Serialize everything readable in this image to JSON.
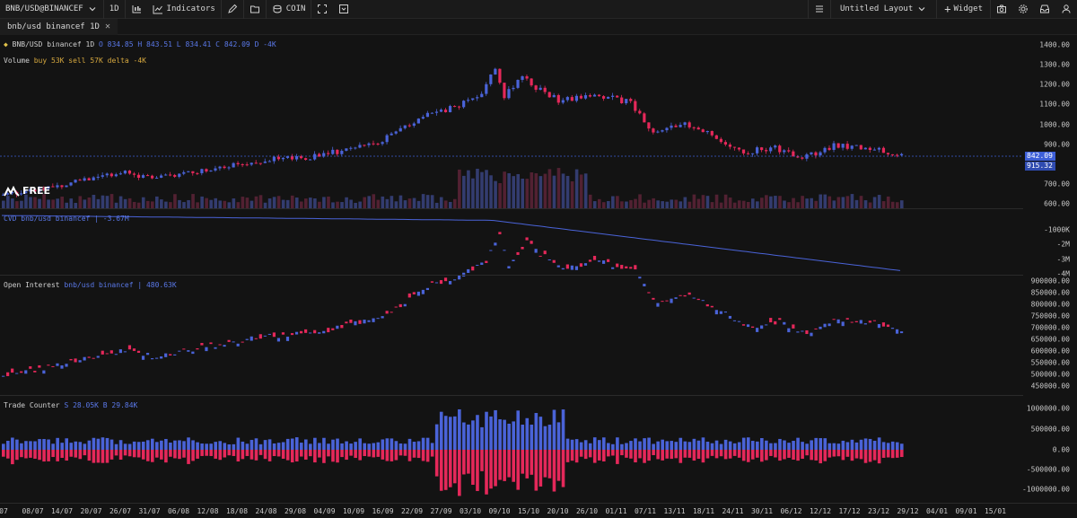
{
  "topbar": {
    "symbol": "BNB/USD@BINANCEF",
    "timeframe": "1D",
    "indicators_label": "Indicators",
    "coin_label": "COIN",
    "layout_name": "Untitled Layout",
    "widget_label": "Widget"
  },
  "tab": {
    "label": "bnb/usd binancef 1D"
  },
  "price_pane": {
    "title": "BNB/USD binancef 1D",
    "ohlc": {
      "o_label": "O",
      "o": "834.85",
      "h_label": "H",
      "h": "843.51",
      "l_label": "L",
      "l": "834.41",
      "c_label": "C",
      "c": "842.09",
      "d_label": "D",
      "d": "-4K"
    },
    "volume_legend": {
      "label": "Volume",
      "buy": "buy 53K",
      "sell": "sell 57K",
      "delta": "delta -4K"
    },
    "axis_labels": [
      "1400.00",
      "1300.00",
      "1200.00",
      "1100.00",
      "1000.00",
      "900.00",
      "842.09",
      "915.32",
      "700.00",
      "600.00"
    ],
    "last_price_tag": "842.09",
    "second_tag": "915.32"
  },
  "cvd_pane": {
    "legend": "CVD bnb/usd binancef | -3.67M",
    "axis_labels": [
      "-1000K",
      "-2M",
      "-3M",
      "-4M"
    ]
  },
  "oi_pane": {
    "legend_label": "Open Interest",
    "legend_value": "bnb/usd binancef | 480.63K",
    "axis_labels": [
      "900000.00",
      "850000.00",
      "800000.00",
      "750000.00",
      "700000.00",
      "650000.00",
      "600000.00",
      "550000.00",
      "500000.00",
      "450000.00"
    ]
  },
  "trade_pane": {
    "legend_label": "Trade Counter",
    "legend_value": "S 28.05K B 29.84K",
    "axis_labels": [
      "1000000.00",
      "500000.00",
      "0.00",
      "-500000.00",
      "-1000000.00"
    ]
  },
  "time_axis": [
    "07",
    "08/07",
    "14/07",
    "20/07",
    "26/07",
    "31/07",
    "06/08",
    "12/08",
    "18/08",
    "24/08",
    "29/08",
    "04/09",
    "10/09",
    "16/09",
    "22/09",
    "27/09",
    "03/10",
    "09/10",
    "15/10",
    "20/10",
    "26/10",
    "01/11",
    "07/11",
    "13/11",
    "18/11",
    "24/11",
    "30/11",
    "06/12",
    "12/12",
    "17/12",
    "23/12",
    "29/12",
    "04/01",
    "09/01",
    "15/01"
  ],
  "watermark": "FREE",
  "colors": {
    "up": "#4a63d8",
    "down": "#e5285a",
    "background": "#131313"
  }
}
